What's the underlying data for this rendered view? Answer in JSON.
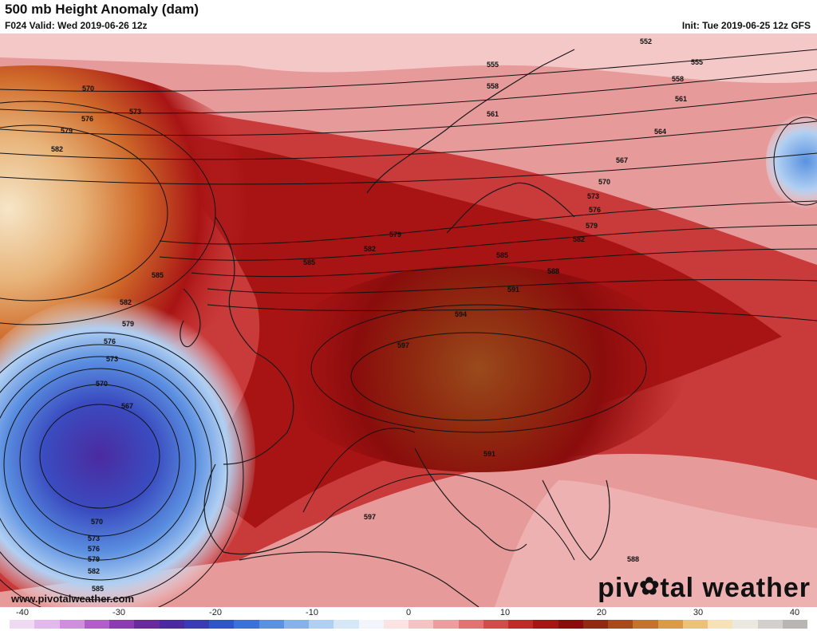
{
  "header": {
    "title": "500 mb Height Anomaly (dam)",
    "valid": "F024 Valid: Wed 2019-06-26 12z",
    "init": "Init: Tue 2019-06-25 12z GFS"
  },
  "footer": {
    "website": "www.pivotalweather.com",
    "brand_left": "piv",
    "brand_right": "tal weather"
  },
  "colorbar": {
    "ticks": [
      "-40",
      "-30",
      "-20",
      "-10",
      "0",
      "10",
      "20",
      "30",
      "40"
    ],
    "colors": [
      "#f0d9f3",
      "#e3b8eb",
      "#cf8fdc",
      "#b25ec9",
      "#8d3bb1",
      "#6a2a9c",
      "#4b2aa0",
      "#3a3cb4",
      "#2f55c8",
      "#3a72d6",
      "#5a92e0",
      "#84b2e9",
      "#b0cff2",
      "#d6e7f8",
      "#f2f6fb",
      "#fbe3e3",
      "#f5c3c3",
      "#ec9d9d",
      "#e07474",
      "#d24c4c",
      "#c22a2a",
      "#a81414",
      "#8a0c0c",
      "#8f2b10",
      "#a64a1c",
      "#c2742e",
      "#d99a4a",
      "#ecc27a",
      "#f6e2b6",
      "#ebe8e0",
      "#d2d0cc",
      "#b8b6b2"
    ]
  },
  "contours": {
    "upper_right": [
      "552",
      "555",
      "558",
      "561",
      "564",
      "567",
      "570",
      "573",
      "576",
      "579",
      "582",
      "585",
      "588"
    ],
    "upper_left": [
      "570",
      "573",
      "576",
      "579",
      "582",
      "585"
    ],
    "scandinavia": [
      "555",
      "558",
      "561"
    ],
    "europe": [
      "579",
      "582",
      "585",
      "588",
      "591",
      "594",
      "597"
    ],
    "low_west": [
      "582",
      "579",
      "576",
      "573",
      "570",
      "567",
      "570",
      "573",
      "576",
      "579",
      "582",
      "585"
    ],
    "south": [
      "591",
      "597",
      "588"
    ]
  },
  "colors": {
    "anomaly_positive": "#b71c1c",
    "anomaly_peak": "#9a4a1c",
    "anomaly_negative": "#2f55c8",
    "low_center": "#4b2aa0"
  }
}
